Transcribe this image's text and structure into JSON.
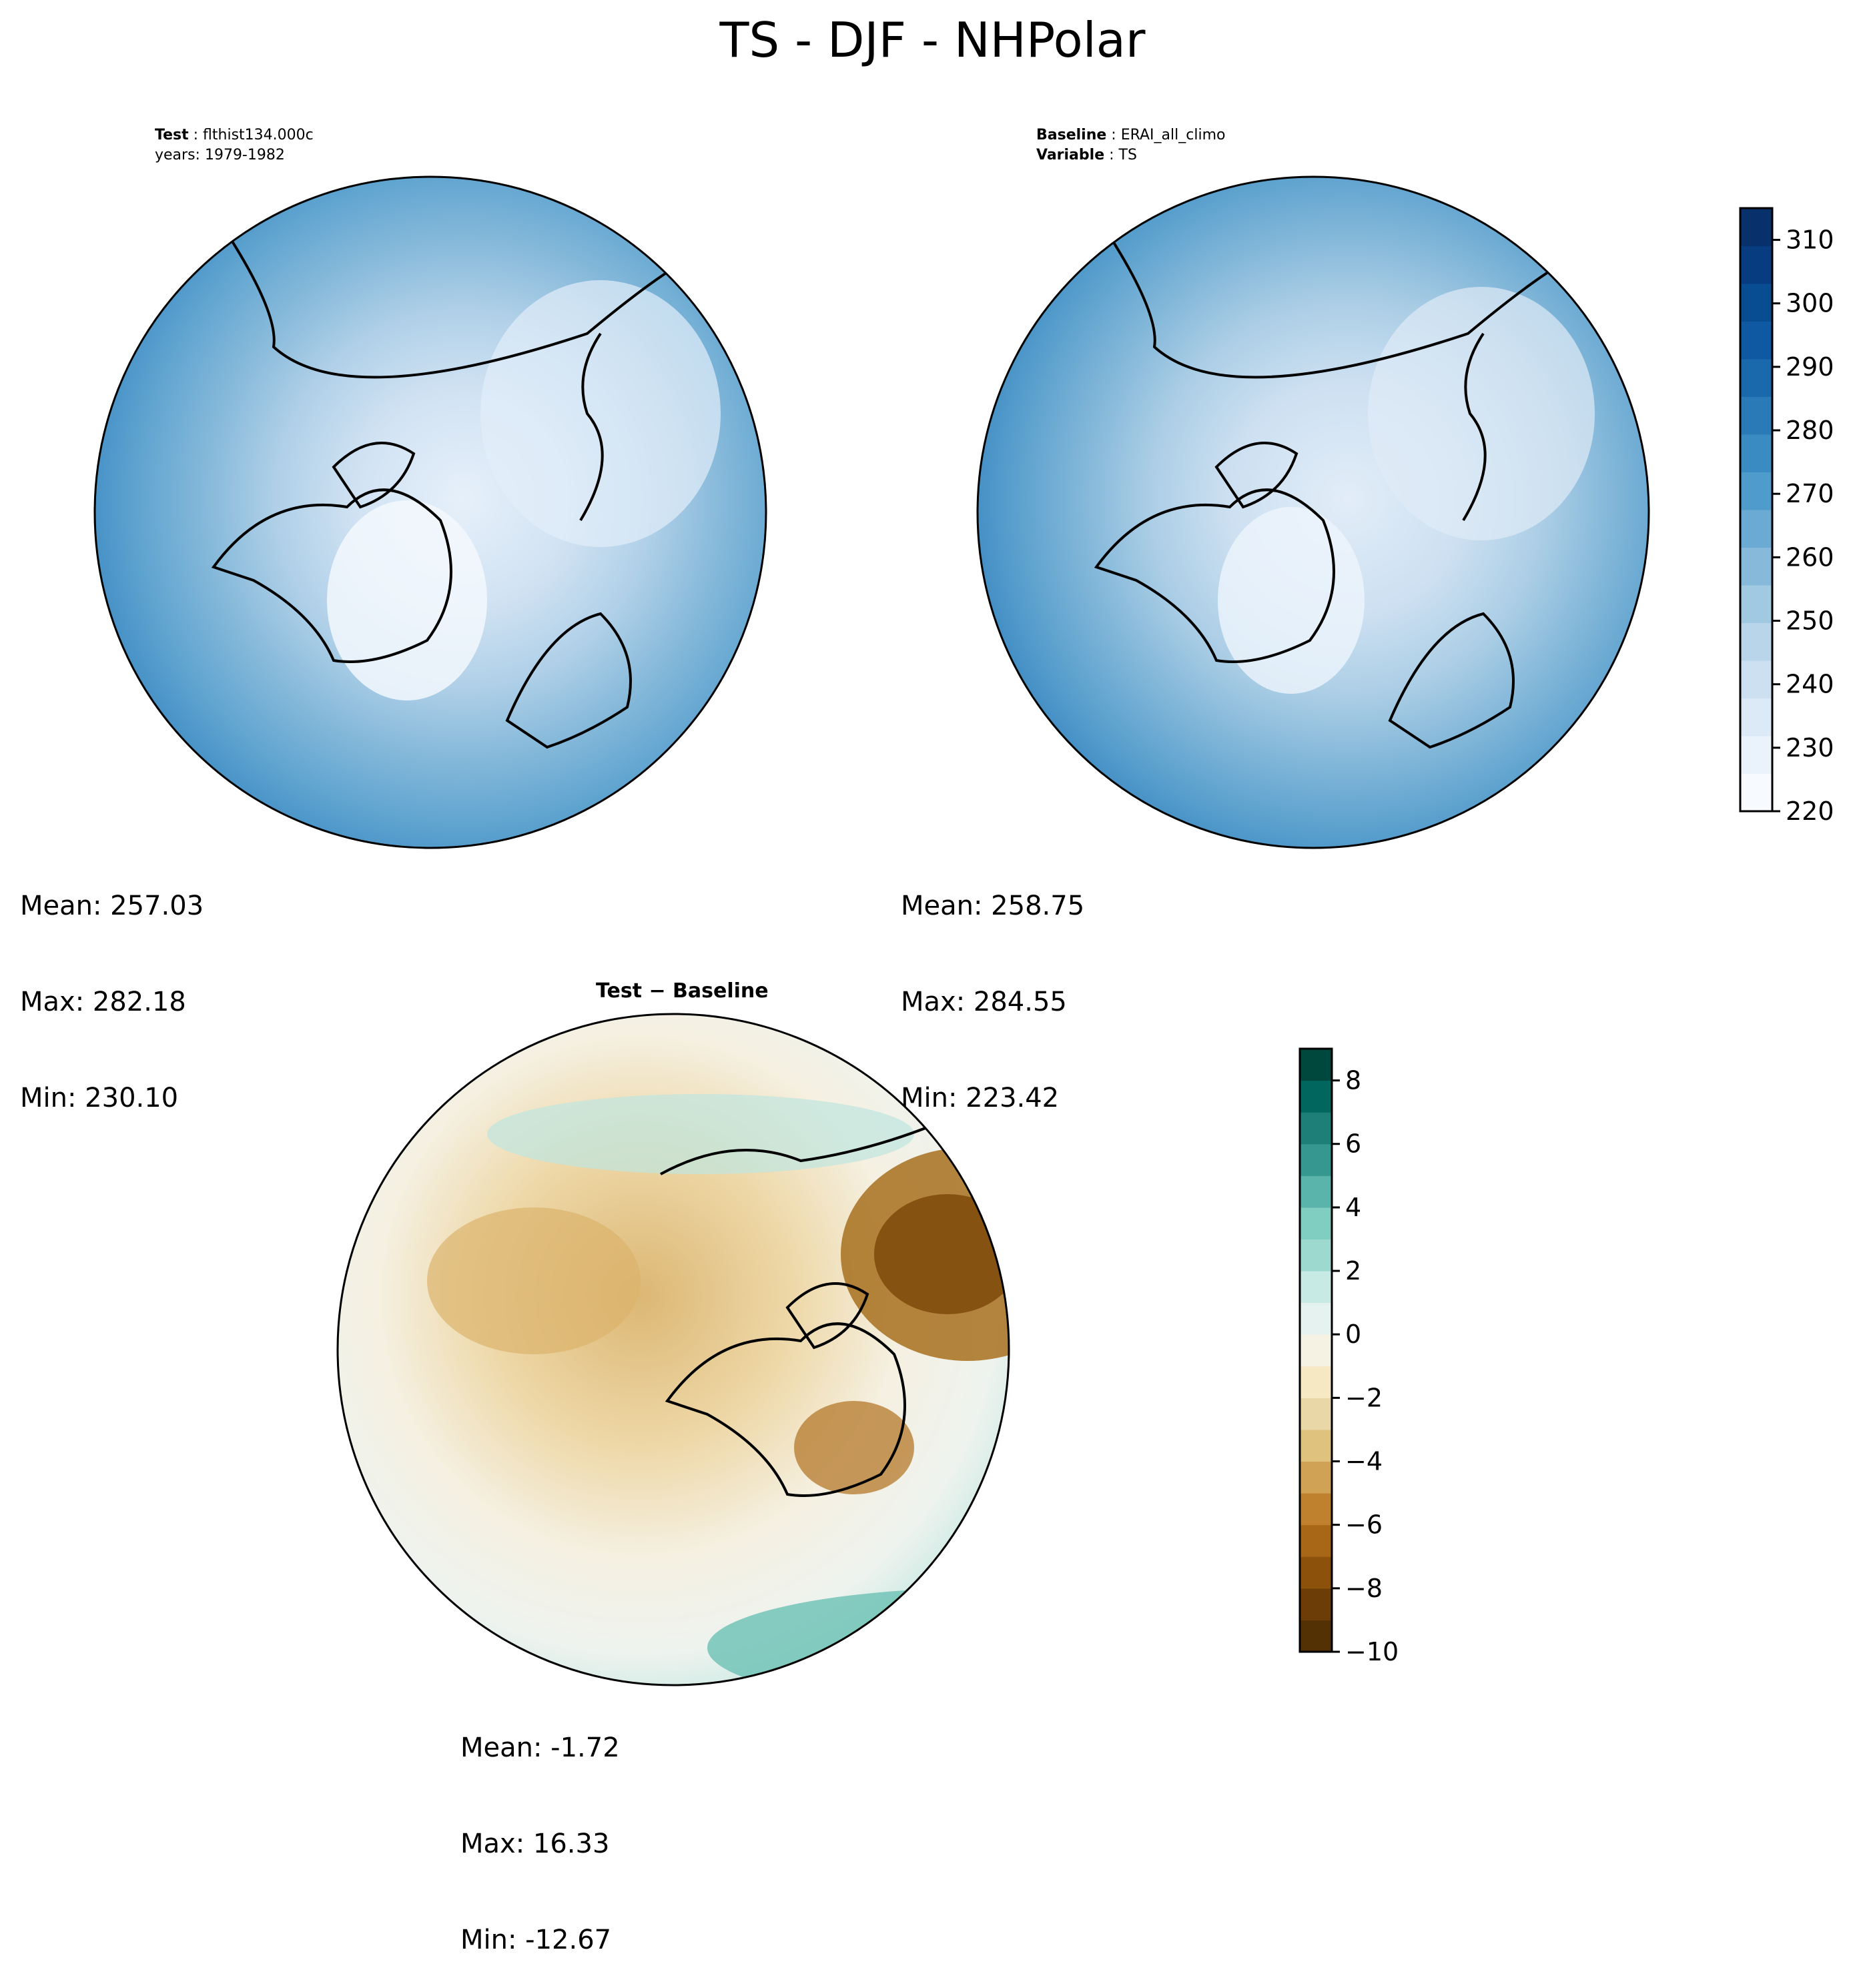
{
  "title": "TS - DJF - NHPolar",
  "test_panel": {
    "label_bold": "Test",
    "label_value": "flthist134.000c",
    "years": "years: 1979-1982",
    "mean": "Mean: 257.03",
    "max": "Max: 282.18",
    "min": "Min: 230.10"
  },
  "baseline_panel": {
    "label_bold": "Baseline",
    "label_value": "ERAI_all_climo",
    "variable_bold": "Variable",
    "variable_value": "TS",
    "mean": "Mean: 258.75",
    "max": "Max: 284.55",
    "min": "Min: 223.42"
  },
  "diff_panel": {
    "title": "Test − Baseline",
    "mean": "Mean: -1.72",
    "max": "Max: 16.33",
    "min": "Min: -12.67"
  },
  "colorbar_main": {
    "ticks": [
      "220",
      "230",
      "240",
      "250",
      "260",
      "270",
      "280",
      "290",
      "300",
      "310"
    ],
    "range": [
      220,
      315
    ],
    "colors": [
      "#f7fbff",
      "#eaf3fb",
      "#dce9f6",
      "#cde0f1",
      "#b9d5ea",
      "#a2c9e2",
      "#86b9da",
      "#6aaad3",
      "#4f9bcb",
      "#3a8bc2",
      "#2a7ab8",
      "#1b69ad",
      "#0f58a2",
      "#084c92",
      "#083c80",
      "#08306b"
    ]
  },
  "colorbar_diff": {
    "ticks": [
      "−10",
      "−8",
      "−6",
      "−4",
      "−2",
      "0",
      "2",
      "4",
      "6",
      "8"
    ],
    "range": [
      -10,
      9
    ],
    "colors": [
      "#543005",
      "#6d3d08",
      "#8c510a",
      "#a86617",
      "#bf812d",
      "#cfa256",
      "#dfc27d",
      "#ead7a7",
      "#f6e8c3",
      "#f5f2e4",
      "#e6f2ef",
      "#c7eae5",
      "#9ed9cf",
      "#80cdc1",
      "#5ab4ac",
      "#35978f",
      "#1d7f77",
      "#01665e",
      "#00483e"
    ]
  },
  "map_layers": {
    "land_outline_color": "#000000",
    "field_colors_test": [
      "#3b8cc3",
      "#5aa2cf",
      "#85b9da",
      "#a7cce4",
      "#c6dcef",
      "#dbe9f6",
      "#ecf4fb"
    ],
    "field_colors_diff": [
      "#f5f2e4",
      "#ead7a7",
      "#dfc27d",
      "#bf812d",
      "#8c510a",
      "#80cdc1",
      "#c7eae5"
    ]
  }
}
